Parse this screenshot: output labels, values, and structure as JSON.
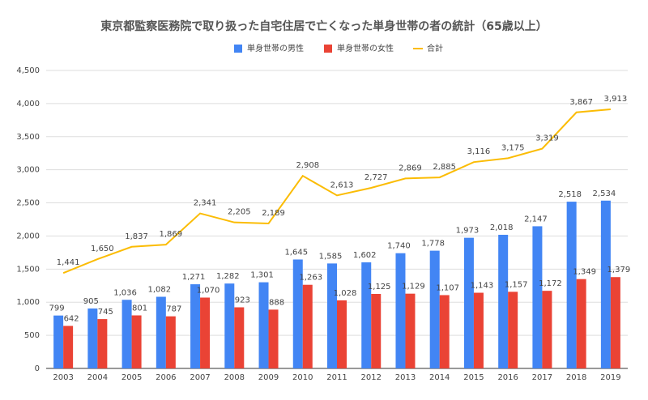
{
  "chart_data": {
    "type": "bar",
    "title": "東京都監察医務院で取り扱った自宅住居で亡くなった単身世帯の者の統計（65歳以上）",
    "categories": [
      "2003",
      "2004",
      "2005",
      "2006",
      "2007",
      "2008",
      "2009",
      "2010",
      "2011",
      "2012",
      "2013",
      "2014",
      "2015",
      "2016",
      "2017",
      "2018",
      "2019"
    ],
    "series": [
      {
        "name": "単身世帯の男性",
        "type": "bar",
        "color": "#4285f4",
        "values": [
          799,
          905,
          1036,
          1082,
          1271,
          1282,
          1301,
          1645,
          1585,
          1602,
          1740,
          1778,
          1973,
          2018,
          2147,
          2518,
          2534
        ],
        "value_labels": [
          "799",
          "905",
          "1,036",
          "1,082",
          "1,271",
          "1,282",
          "1,301",
          "1,645",
          "1,585",
          "1,602",
          "1,740",
          "1,778",
          "1,973",
          "2,018",
          "2,147",
          "2,518",
          "2,534"
        ]
      },
      {
        "name": "単身世帯の女性",
        "type": "bar",
        "color": "#ea4335",
        "values": [
          642,
          745,
          801,
          787,
          1070,
          923,
          888,
          1263,
          1028,
          1125,
          1129,
          1107,
          1143,
          1157,
          1172,
          1349,
          1379
        ],
        "value_labels": [
          "642",
          "745",
          "801",
          "787",
          "1,070",
          "923",
          "888",
          "1,263",
          "1,028",
          "1,125",
          "1,129",
          "1,107",
          "1,143",
          "1,157",
          "1,172",
          "1,349",
          "1,379"
        ]
      },
      {
        "name": "合計",
        "type": "line",
        "color": "#fbbc04",
        "values": [
          1441,
          1650,
          1837,
          1869,
          2341,
          2205,
          2189,
          2908,
          2613,
          2727,
          2869,
          2885,
          3116,
          3175,
          3319,
          3867,
          3913
        ],
        "value_labels": [
          "1,441",
          "1,650",
          "1,837",
          "1,869",
          "2,341",
          "2,205",
          "2,189",
          "2,908",
          "2,613",
          "2,727",
          "2,869",
          "2,885",
          "3,116",
          "3,175",
          "3,319",
          "3,867",
          "3,913"
        ]
      }
    ],
    "ylim": [
      0,
      4500
    ],
    "yticks": [
      0,
      500,
      {
        "value": 1000,
        "label": "1,000"
      },
      {
        "value": 1500,
        "label": "1,500"
      },
      {
        "value": 2000,
        "label": "2,000"
      },
      {
        "value": 2500,
        "label": "2,500"
      },
      {
        "value": 3000,
        "label": "3,000"
      },
      {
        "value": 3500,
        "label": "3,500"
      },
      {
        "value": 4000,
        "label": "4,000"
      },
      {
        "value": 4500,
        "label": "4,500"
      }
    ],
    "grid": true,
    "legend": "top"
  }
}
